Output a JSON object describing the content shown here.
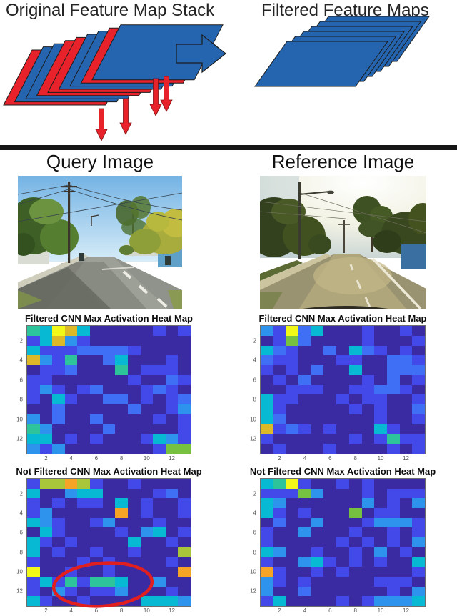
{
  "figure": {
    "top": {
      "left_title": "Original Feature Map Stack",
      "right_title": "Filtered Feature Maps"
    },
    "middle": {
      "query_title": "Query Image",
      "reference_title": "Reference Image"
    }
  },
  "colors": {
    "sheet_blue": "#2565B0",
    "sheet_red": "#E8222A",
    "outline": "#1c1c1c",
    "annotation_red": "#E21F1F",
    "divider": "#161616"
  },
  "heatmap_palette": {
    "d": "#3B2BA3",
    "b": "#4348E8",
    "l": "#3E6FF5",
    "s": "#2E93EC",
    "c": "#07B9D2",
    "t": "#2EC49B",
    "g": "#77C141",
    "v": "#A9C53A",
    "y": "#F2F818",
    "o": "#DDB927",
    "a": "#F5A426"
  },
  "heatmap_palette_note": "letters are color classes read from the figure: d=dark indigo, b=royal blue, l=lighter blue, s=sky blue, c=cyan, t=teal-green, g=green, v=yellow-green, y=yellow, o=gold, a=orange",
  "chart_data": [
    {
      "type": "heatmap",
      "title": "Filtered CNN Max Activation Heat Map",
      "column_of": "Query Image",
      "x_ticks": [
        2,
        4,
        6,
        8,
        10,
        12
      ],
      "y_ticks": [
        2,
        4,
        6,
        8,
        10,
        12
      ],
      "rows": 13,
      "cols": 13,
      "grid": [
        "tcyocdddddbdb",
        "bcosbdddddddd",
        "cbbbllllbdddd",
        "osbtddlcdddbd",
        "dbbldddtdbbbd",
        "bbddddddbddlb",
        "bsbdbldddblbd",
        "bdcbddlldbdbl",
        "ddldddddlddbs",
        "sdlddlddddbdb",
        "tsddddldddddb",
        "ccdbdbdddbcsb",
        "sbsdddddddbgg"
      ]
    },
    {
      "type": "heatmap",
      "title": "Filtered CNN Max Activation Heat Map",
      "column_of": "Reference Image",
      "x_ticks": [
        2,
        4,
        6,
        8,
        10,
        12
      ],
      "y_ticks": [
        2,
        4,
        6,
        8,
        10,
        12
      ],
      "rows": 13,
      "cols": 13,
      "grid": [
        "sbylcdddbddbd",
        "dbglddddbdddb",
        "clbddldclbdbd",
        "lbbdddbbddllb",
        "bdbdlddcddlll",
        "dbdlddddbdldb",
        "ddbbbddbbllbd",
        "cbbdddbdbbddb",
        "cbdddddbdbddl",
        "cldddddddbddb",
        "oblbdbdddcbdd",
        "bddddddbdbtbb",
        "dbdddbddddbdb"
      ]
    },
    {
      "type": "heatmap",
      "title": "Not Filtered CNN Max Activation Heat Map",
      "column_of": "Query Image",
      "x_ticks": [
        2,
        4,
        6,
        8,
        10,
        12
      ],
      "y_ticks": [
        2,
        4,
        6,
        8,
        10,
        12
      ],
      "rows": 13,
      "cols": 13,
      "annotation": "red ellipse highlighting rows 10-13, cols 3-9",
      "grid": [
        "bvvavbddbdddd",
        "cddsccddddbld",
        "bdbdbbdcdbddb",
        "bsdddddadbddb",
        "csbddbsdddbdd",
        "dcbddddbdscdb",
        "cbdbddddcddbd",
        "cdbddbddbdddv",
        "bdddbdbddddbd",
        "yddbddbddddda",
        "bcbtbttcddsdd",
        "bdsbdbbsdddbd",
        "cbddbddddcccs"
      ]
    },
    {
      "type": "heatmap",
      "title": "Not Filtered CNN Max Activation Heat Map",
      "column_of": "Reference Image",
      "x_ticks": [
        2,
        4,
        6,
        8,
        10,
        12
      ],
      "y_ticks": [
        2,
        4,
        6,
        8,
        10,
        12
      ],
      "rows": 13,
      "cols": 13,
      "grid": [
        "ctybddbdbdddd",
        "bbbgsdddbdbbb",
        "csddddddsdbds",
        "cbdbdddgdbbdd",
        "dlddsdddbsssb",
        "bddsdddbddbdb",
        "bdddddbdbdbds",
        "csddbddbdsdbd",
        "bddscbdbdbddc",
        "abddbdbdddddb",
        "sbdbdddddbbbd",
        "sddlddddddbds",
        "bcddddbdbsssc"
      ]
    }
  ]
}
